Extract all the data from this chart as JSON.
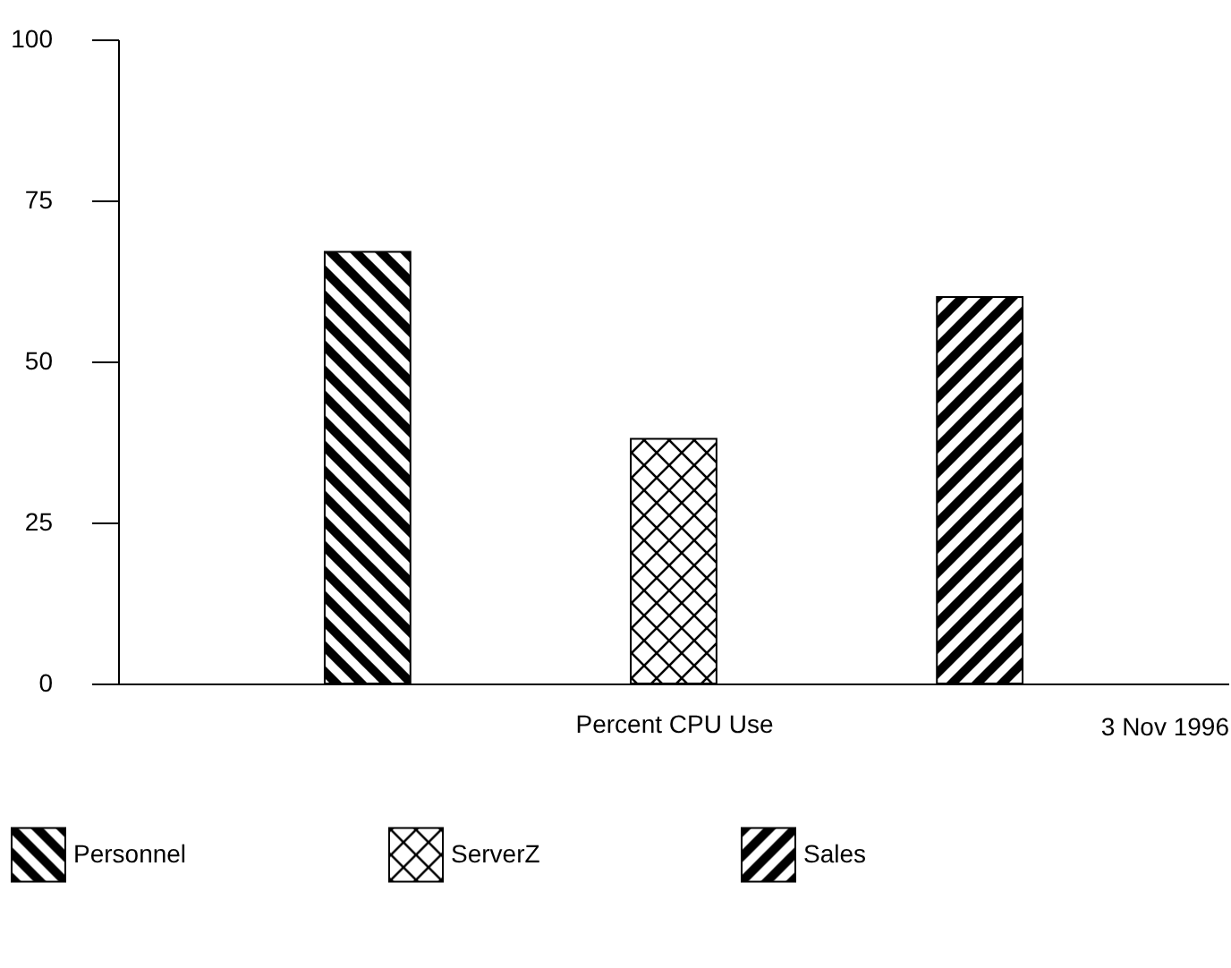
{
  "chart_data": {
    "type": "bar",
    "xlabel": "Percent CPU Use",
    "categories": [
      null
    ],
    "series": [
      {
        "name": "Personnel",
        "color": "#000000",
        "values": [
          67
        ]
      },
      {
        "name": "ServerZ",
        "color": "#000000",
        "values": [
          38
        ]
      },
      {
        "name": "Sales",
        "color": "#000000",
        "values": [
          60
        ]
      }
    ],
    "ylim": [
      0,
      100
    ],
    "yticks": [
      0,
      25,
      50,
      75,
      100
    ],
    "grid": false,
    "legend": "bottom left",
    "annotations": [
      "3 Nov 1996"
    ]
  }
}
